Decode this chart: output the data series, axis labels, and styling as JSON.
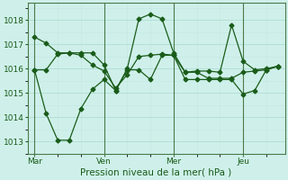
{
  "background_color": "#cff0ea",
  "grid_color_major": "#a8d8d0",
  "grid_color_minor": "#c0e8e0",
  "line_color": "#1a5c1a",
  "vline_color": "#4a7a4a",
  "title": "Pression niveau de la mer( hPa )",
  "ylim": [
    1012.5,
    1018.7
  ],
  "yticks": [
    1013,
    1014,
    1015,
    1016,
    1017,
    1018
  ],
  "x_day_labels": [
    "Mar",
    "Ven",
    "Mer",
    "Jeu"
  ],
  "vline_positions": [
    0.0,
    3.0,
    6.0,
    9.0
  ],
  "series1_x": [
    0.0,
    0.5,
    1.0,
    1.5,
    2.0,
    2.5,
    3.0,
    3.5,
    4.0,
    4.5,
    5.0,
    5.5,
    6.0,
    6.5,
    7.0,
    7.5,
    8.0,
    8.5,
    9.0,
    9.5,
    10.0,
    10.5
  ],
  "series1_y": [
    1017.3,
    1017.05,
    1016.65,
    1016.65,
    1016.65,
    1016.65,
    1016.15,
    1015.1,
    1016.0,
    1018.05,
    1018.25,
    1018.05,
    1016.65,
    1015.85,
    1015.9,
    1015.9,
    1015.85,
    1017.8,
    1016.3,
    1015.95,
    1016.0,
    1016.1
  ],
  "series2_x": [
    0.0,
    0.5,
    1.0,
    1.5,
    2.0,
    2.5,
    3.0,
    3.5,
    4.0,
    4.5,
    5.0,
    5.5,
    6.0,
    6.5,
    7.0,
    7.5,
    8.0,
    8.5,
    9.0,
    9.5,
    10.0,
    10.5
  ],
  "series2_y": [
    1015.95,
    1015.95,
    1016.6,
    1016.65,
    1016.55,
    1016.15,
    1015.9,
    1015.2,
    1015.75,
    1016.5,
    1016.55,
    1016.6,
    1016.55,
    1015.85,
    1015.85,
    1015.6,
    1015.6,
    1015.6,
    1015.85,
    1015.9,
    1015.95,
    1016.1
  ],
  "series3_x": [
    0.0,
    0.5,
    1.0,
    1.5,
    2.0,
    2.5,
    3.0,
    3.5,
    4.0,
    4.5,
    5.0,
    5.5,
    6.0,
    6.5,
    7.0,
    7.5,
    8.0,
    8.5,
    9.0,
    9.5,
    10.0,
    10.5
  ],
  "series3_y": [
    1015.95,
    1014.15,
    1013.05,
    1013.05,
    1014.35,
    1015.15,
    1015.55,
    1015.1,
    1015.95,
    1015.95,
    1015.55,
    1016.55,
    1016.55,
    1015.55,
    1015.55,
    1015.55,
    1015.55,
    1015.55,
    1014.95,
    1015.1,
    1015.95,
    1016.1
  ],
  "xlim": [
    -0.3,
    10.8
  ],
  "title_fontsize": 7.5,
  "tick_fontsize": 6.5
}
